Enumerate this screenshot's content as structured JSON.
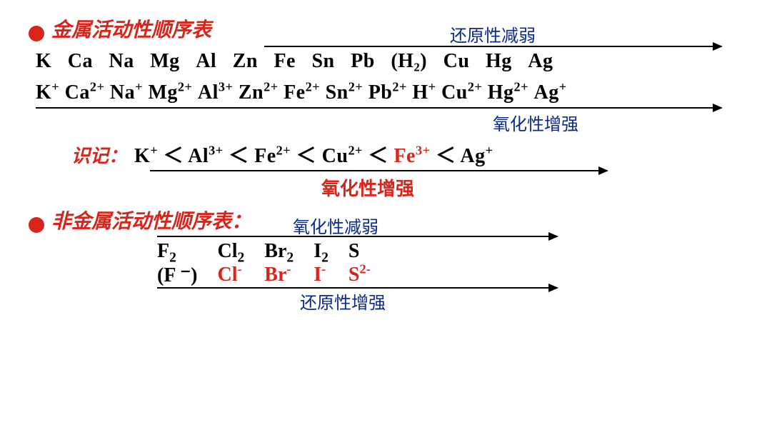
{
  "colors": {
    "red": "#d8241a",
    "blue": "#0a2a8a",
    "black": "#000000",
    "background": "#ffffff"
  },
  "fonts": {
    "heading_family": "KaiTi",
    "body_family": "Times New Roman",
    "heading_size_pt": 21,
    "body_size_pt": 21,
    "arrow_label_size_pt": 18
  },
  "section1": {
    "title": "金属活动性顺序表",
    "arrow_top_label": "还原性减弱",
    "metals": [
      "K",
      "Ca",
      "Na",
      "Mg",
      "Al",
      "Zn",
      "Fe",
      "Sn",
      "Pb",
      "(H₂)",
      "Cu",
      "Hg",
      "Ag"
    ],
    "ions": [
      {
        "base": "K",
        "charge": "+"
      },
      {
        "base": "Ca",
        "charge": "2+"
      },
      {
        "base": "Na",
        "charge": "+"
      },
      {
        "base": "Mg",
        "charge": "2+"
      },
      {
        "base": "Al",
        "charge": "3+"
      },
      {
        "base": "Zn",
        "charge": "2+"
      },
      {
        "base": "Fe",
        "charge": "2+"
      },
      {
        "base": "Sn",
        "charge": "2+"
      },
      {
        "base": "Pb",
        "charge": "2+"
      },
      {
        "base": "H",
        "charge": "+"
      },
      {
        "base": "Cu",
        "charge": "2+"
      },
      {
        "base": "Hg",
        "charge": "2+"
      },
      {
        "base": "Ag",
        "charge": "+"
      }
    ],
    "arrow_bottom_label": "氧化性增强"
  },
  "memo": {
    "label": "识记：",
    "sequence": [
      {
        "base": "K",
        "charge": "+",
        "color": "black"
      },
      {
        "base": "Al",
        "charge": "3+",
        "color": "black"
      },
      {
        "base": "Fe",
        "charge": "2+",
        "color": "black"
      },
      {
        "base": "Cu",
        "charge": "2+",
        "color": "black"
      },
      {
        "base": "Fe",
        "charge": "3+",
        "color": "red"
      },
      {
        "base": "Ag",
        "charge": "+",
        "color": "black"
      }
    ],
    "separator": "＜",
    "arrow_label": "氧化性增强"
  },
  "section2": {
    "title": "非金属活动性顺序表：",
    "arrow_top_label": "氧化性减弱",
    "molecules": [
      {
        "base": "F",
        "sub": "2"
      },
      {
        "base": "Cl",
        "sub": "2"
      },
      {
        "base": "Br",
        "sub": "2"
      },
      {
        "base": "I",
        "sub": "2"
      },
      {
        "base": "S",
        "sub": ""
      }
    ],
    "ions": [
      {
        "text": "(F ⁻)",
        "color": "black"
      },
      {
        "base": "Cl",
        "charge": "-",
        "color": "red"
      },
      {
        "base": "Br",
        "charge": "-",
        "color": "red"
      },
      {
        "base": "I",
        "charge": "-",
        "color": "red"
      },
      {
        "base": "S",
        "charge": "2-",
        "color": "red"
      }
    ],
    "arrow_bottom_label": "还原性增强"
  }
}
